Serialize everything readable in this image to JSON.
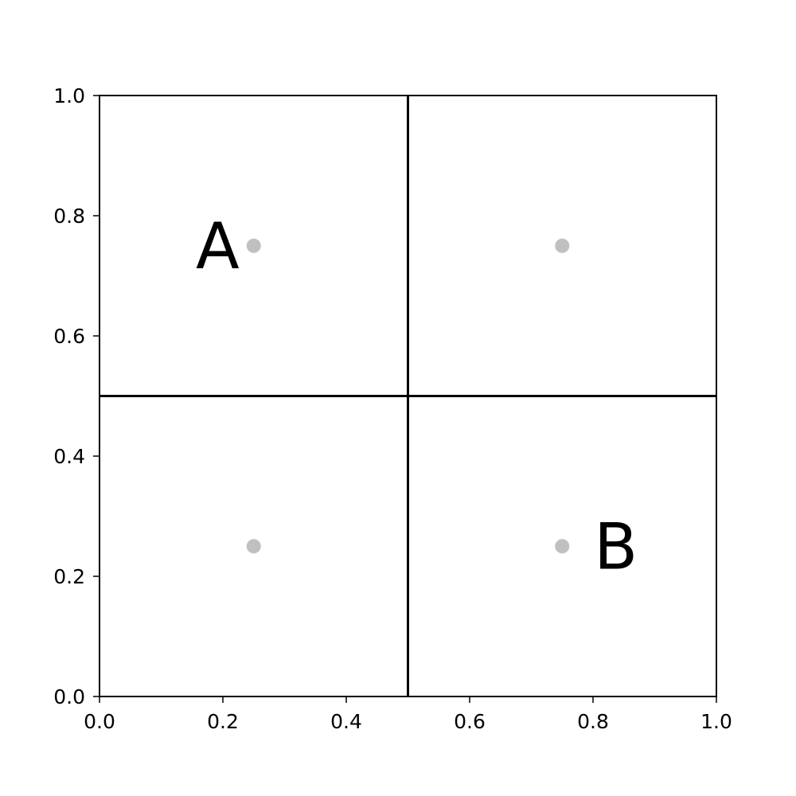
{
  "chart_data": {
    "type": "scatter",
    "title": "",
    "xlabel": "",
    "ylabel": "",
    "xlim": [
      0,
      1
    ],
    "ylim": [
      0,
      1
    ],
    "xticks": [
      0.0,
      0.2,
      0.4,
      0.6,
      0.8,
      1.0
    ],
    "yticks": [
      0.0,
      0.2,
      0.4,
      0.6,
      0.8,
      1.0
    ],
    "xtick_labels": [
      "0.0",
      "0.2",
      "0.4",
      "0.6",
      "0.8",
      "1.0"
    ],
    "ytick_labels": [
      "0.0",
      "0.2",
      "0.4",
      "0.6",
      "0.8",
      "1.0"
    ],
    "grid": false,
    "legend": "none",
    "points": [
      {
        "x": 0.25,
        "y": 0.75
      },
      {
        "x": 0.75,
        "y": 0.75
      },
      {
        "x": 0.25,
        "y": 0.25
      },
      {
        "x": 0.75,
        "y": 0.25
      }
    ],
    "point_color": "#c0c0c0",
    "dividers": {
      "vertical_x": 0.5,
      "horizontal_y": 0.5,
      "color": "#000000"
    },
    "annotations": [
      {
        "text": "A",
        "x": 0.25,
        "y": 0.75,
        "side": "left"
      },
      {
        "text": "B",
        "x": 0.75,
        "y": 0.25,
        "side": "right"
      }
    ]
  }
}
